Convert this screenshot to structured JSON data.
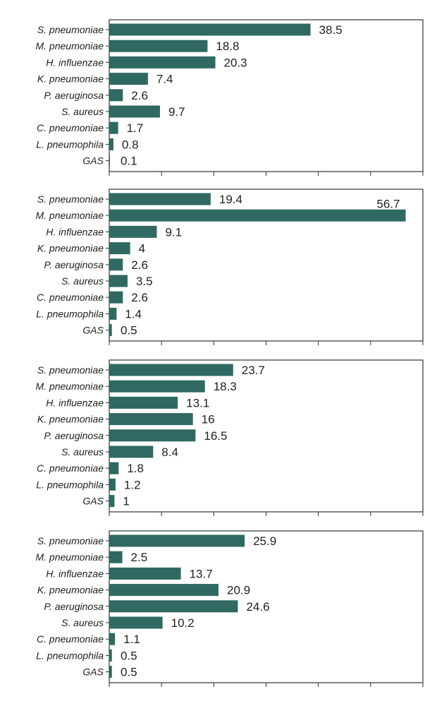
{
  "colors": {
    "bar": "#2f6962",
    "frame": "#333333",
    "text": "#1f1f1f"
  },
  "chart_data": [
    {
      "type": "bar",
      "orientation": "horizontal",
      "categories": [
        "S. pneumoniae",
        "M. pneumoniae",
        "H. influenzae",
        "K. pneumoniae",
        "P. aeruginosa",
        "S. aureus",
        "C. pneumoniae",
        "L. pneumophila",
        "GAS"
      ],
      "values": [
        38.5,
        18.8,
        20.3,
        7.4,
        2.6,
        9.7,
        1.7,
        0.8,
        0.1
      ],
      "value_labels": [
        "38.5",
        "18.8",
        "20.3",
        "7.4",
        "2.6",
        "9.7",
        "1.7",
        "0.8",
        "0.1"
      ],
      "xlim": [
        0,
        60
      ],
      "grid": false,
      "legend": "none"
    },
    {
      "type": "bar",
      "orientation": "horizontal",
      "categories": [
        "S. pneumoniae",
        "M. pneumoniae",
        "H. influenzae",
        "K. pneumoniae",
        "P. aeruginosa",
        "S. aureus",
        "C. pneumoniae",
        "L. pneumophila",
        "GAS"
      ],
      "values": [
        19.4,
        56.7,
        9.1,
        4,
        2.6,
        3.5,
        2.6,
        1.4,
        0.5
      ],
      "value_labels": [
        "19.4",
        "56.7",
        "9.1",
        "4",
        "2.6",
        "3.5",
        "2.6",
        "1.4",
        "0.5"
      ],
      "xlim": [
        0,
        60
      ],
      "grid": false,
      "legend": "none"
    },
    {
      "type": "bar",
      "orientation": "horizontal",
      "categories": [
        "S. pneumoniae",
        "M. pneumoniae",
        "H. influenzae",
        "K. pneumoniae",
        "P. aeruginosa",
        "S. aureus",
        "C. pneumoniae",
        "L. pneumophila",
        "GAS"
      ],
      "values": [
        23.7,
        18.3,
        13.1,
        16,
        16.5,
        8.4,
        1.8,
        1.2,
        1
      ],
      "value_labels": [
        "23.7",
        "18.3",
        "13.1",
        "16",
        "16.5",
        "8.4",
        "1.8",
        "1.2",
        "1"
      ],
      "xlim": [
        0,
        60
      ],
      "grid": false,
      "legend": "none"
    },
    {
      "type": "bar",
      "orientation": "horizontal",
      "categories": [
        "S. pneumoniae",
        "M. pneumoniae",
        "H. influenzae",
        "K. pneumoniae",
        "P. aeruginosa",
        "S. aureus",
        "C. pneumoniae",
        "L. pneumophila",
        "GAS"
      ],
      "values": [
        25.9,
        2.5,
        13.7,
        20.9,
        24.6,
        10.2,
        1.1,
        0.5,
        0.5
      ],
      "value_labels": [
        "25.9",
        "2.5",
        "13.7",
        "20.9",
        "24.6",
        "10.2",
        "1.1",
        "0.5",
        "0.5"
      ],
      "xlim": [
        0,
        60
      ],
      "grid": false,
      "legend": "none"
    }
  ]
}
